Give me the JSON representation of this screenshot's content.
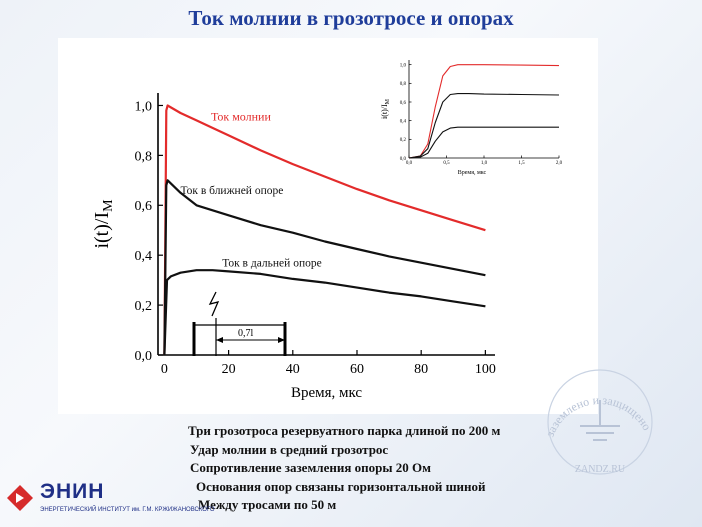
{
  "slide": {
    "title": "Ток молнии в грозотросе и опорах"
  },
  "notes": [
    "Три грозотроса резервуатного парка длиной по 200 м",
    "Удар молнии в средний грозотрос",
    "Сопротивление заземления опоры 20 Ом",
    "Основания опор связаны горизонтальной шиной",
    "Между тросами по 50 м"
  ],
  "logo": {
    "name": "ЭНИН",
    "subtitle": "ЭНЕРГЕТИЧЕСКИЙ ИНСТИТУТ им. Г.М. КРЖИЖАНОВСКОГО"
  },
  "watermark": {
    "text_arc_left": "заземлено",
    "text_arc_and": "и",
    "text_arc_right": "защищено",
    "text_bottom": "ZANDZ.RU"
  },
  "colors": {
    "title": "#1f3d9a",
    "lightning_current": "#e32b2b",
    "tower_current": "#111111",
    "logo": "#1f2f86"
  },
  "chart_data": [
    {
      "type": "line",
      "xlabel": "Время,  мкс",
      "ylabel": "i(t)/I",
      "ylabel_sub": "М",
      "xlim": [
        -2,
        103
      ],
      "ylim": [
        0,
        1.05
      ],
      "xticks": [
        "0",
        "20",
        "40",
        "60",
        "80",
        "100"
      ],
      "yticks": [
        "0,0",
        "0,2",
        "0,4",
        "0,6",
        "0,8",
        "1,0"
      ],
      "series": [
        {
          "name": "Ток молнии",
          "color": "#e32b2b",
          "x": [
            0,
            0.6,
            1,
            5,
            10,
            20,
            30,
            40,
            50,
            60,
            70,
            80,
            90,
            100
          ],
          "y": [
            0,
            0.98,
            1.0,
            0.97,
            0.94,
            0.88,
            0.82,
            0.765,
            0.715,
            0.665,
            0.62,
            0.58,
            0.54,
            0.5
          ]
        },
        {
          "name": "Ток в ближней опоре",
          "color": "#111111",
          "x": [
            0,
            0.6,
            1,
            5,
            10,
            20,
            30,
            40,
            50,
            60,
            70,
            80,
            90,
            100
          ],
          "y": [
            0,
            0.68,
            0.7,
            0.65,
            0.6,
            0.56,
            0.52,
            0.49,
            0.455,
            0.425,
            0.395,
            0.37,
            0.345,
            0.32
          ]
        },
        {
          "name": "Ток в дальней опоре",
          "color": "#111111",
          "x": [
            0,
            0.8,
            2,
            5,
            10,
            15,
            20,
            30,
            40,
            50,
            60,
            70,
            80,
            90,
            100
          ],
          "y": [
            0,
            0.3,
            0.315,
            0.33,
            0.34,
            0.34,
            0.335,
            0.325,
            0.305,
            0.29,
            0.27,
            0.25,
            0.235,
            0.215,
            0.195
          ]
        }
      ],
      "annotations": {
        "span_label": "0,7l"
      }
    },
    {
      "type": "line",
      "xlabel": "Время,  мкс",
      "ylabel": "i(t)/I",
      "ylabel_sub": "М",
      "xlim": [
        0,
        2.0
      ],
      "ylim": [
        0,
        1.05
      ],
      "xticks": [
        "0,0",
        "0,5",
        "1,0",
        "1,5",
        "2,0"
      ],
      "yticks": [
        "0,0",
        "0,2",
        "0,4",
        "0,6",
        "0,8",
        "1,0"
      ],
      "series": [
        {
          "color": "#e32b2b",
          "x": [
            0,
            0.15,
            0.25,
            0.35,
            0.45,
            0.55,
            0.65,
            0.8,
            1.0,
            1.5,
            2.0
          ],
          "y": [
            0,
            0.02,
            0.15,
            0.55,
            0.88,
            0.98,
            1.0,
            1.0,
            1.0,
            0.995,
            0.99
          ]
        },
        {
          "color": "#111111",
          "x": [
            0,
            0.15,
            0.25,
            0.35,
            0.45,
            0.55,
            0.65,
            0.8,
            1.0,
            1.5,
            2.0
          ],
          "y": [
            0,
            0.02,
            0.1,
            0.38,
            0.6,
            0.68,
            0.69,
            0.69,
            0.685,
            0.68,
            0.675
          ]
        },
        {
          "color": "#111111",
          "x": [
            0,
            0.15,
            0.25,
            0.35,
            0.45,
            0.55,
            0.65,
            0.8,
            1.0,
            1.5,
            2.0
          ],
          "y": [
            0,
            0.01,
            0.05,
            0.18,
            0.28,
            0.32,
            0.33,
            0.33,
            0.33,
            0.33,
            0.33
          ]
        }
      ]
    }
  ]
}
